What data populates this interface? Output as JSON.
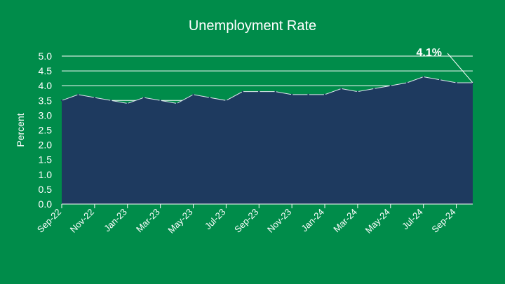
{
  "chart_data": {
    "type": "area",
    "title": "Unemployment Rate",
    "ylabel": "Percent",
    "xlabel": "",
    "ylim": [
      0,
      5
    ],
    "y_ticks": [
      "0.0",
      "0.5",
      "1.0",
      "1.5",
      "2.0",
      "2.5",
      "3.0",
      "3.5",
      "4.0",
      "4.5",
      "5.0"
    ],
    "x": [
      "Sep-22",
      "Oct-22",
      "Nov-22",
      "Dec-22",
      "Jan-23",
      "Feb-23",
      "Mar-23",
      "Apr-23",
      "May-23",
      "Jun-23",
      "Jul-23",
      "Aug-23",
      "Sep-23",
      "Oct-23",
      "Nov-23",
      "Dec-23",
      "Jan-24",
      "Feb-24",
      "Mar-24",
      "Apr-24",
      "May-24",
      "Jun-24",
      "Jul-24",
      "Aug-24",
      "Sep-24",
      "Oct-24"
    ],
    "x_tick_labels": [
      "Sep-22",
      "Nov-22",
      "Jan-23",
      "Mar-23",
      "May-23",
      "Jul-23",
      "Sep-23",
      "Nov-23",
      "Jan-24",
      "Mar-24",
      "May-24",
      "Jul-24",
      "Sep-24"
    ],
    "values": [
      3.5,
      3.7,
      3.6,
      3.5,
      3.4,
      3.6,
      3.5,
      3.4,
      3.7,
      3.6,
      3.5,
      3.8,
      3.8,
      3.8,
      3.7,
      3.7,
      3.7,
      3.9,
      3.8,
      3.9,
      4.0,
      4.1,
      4.3,
      4.2,
      4.1,
      4.1
    ],
    "gridlines": [
      3.5,
      4.0,
      4.5,
      5.0
    ],
    "annotation": {
      "text": "4.1%",
      "x": "Oct-24",
      "y": 4.1
    },
    "colors": {
      "background": "#008C4A",
      "fill": "#1E3A5F",
      "text": "#ffffff",
      "grid": "#ffffff"
    }
  }
}
